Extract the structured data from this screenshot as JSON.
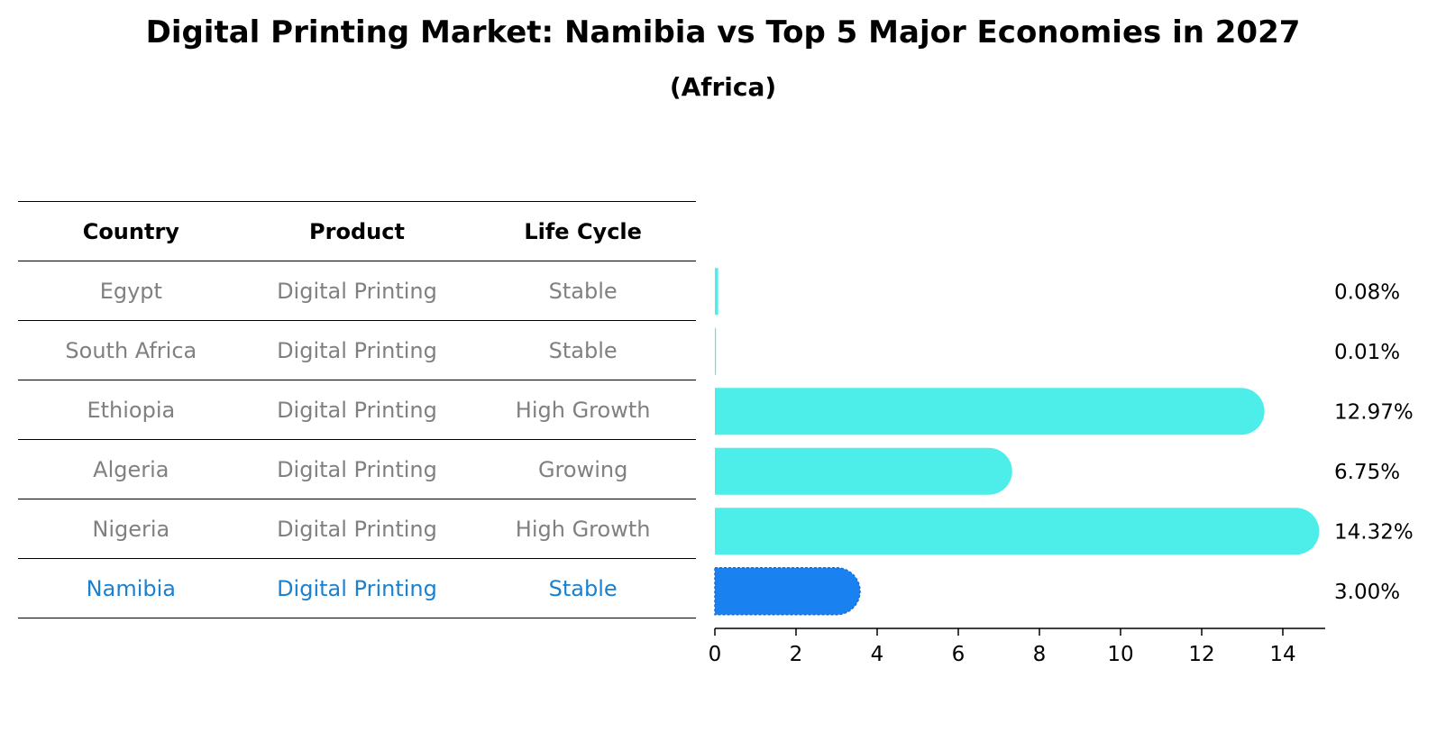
{
  "title": "Digital Printing Market: Namibia vs Top 5 Major Economies in 2027",
  "subtitle": "(Africa)",
  "table": {
    "headers": [
      "Country",
      "Product",
      "Life Cycle"
    ],
    "rows": [
      {
        "country": "Egypt",
        "product": "Digital Printing",
        "life_cycle": "Stable"
      },
      {
        "country": "South Africa",
        "product": "Digital Printing",
        "life_cycle": "Stable"
      },
      {
        "country": "Ethiopia",
        "product": "Digital Printing",
        "life_cycle": "High Growth"
      },
      {
        "country": "Algeria",
        "product": "Digital Printing",
        "life_cycle": "Growing"
      },
      {
        "country": "Nigeria",
        "product": "Digital Printing",
        "life_cycle": "High Growth"
      },
      {
        "country": "Namibia",
        "product": "Digital Printing",
        "life_cycle": "Stable"
      }
    ],
    "highlight_index": 5
  },
  "chart_data": {
    "type": "bar",
    "orientation": "horizontal",
    "categories": [
      "Egypt",
      "South Africa",
      "Ethiopia",
      "Algeria",
      "Nigeria",
      "Namibia"
    ],
    "values": [
      0.08,
      0.01,
      12.97,
      6.75,
      14.32,
      3.0
    ],
    "value_labels": [
      "0.08%",
      "0.01%",
      "12.97%",
      "6.75%",
      "14.32%",
      "3.00%"
    ],
    "xlim": [
      0,
      15
    ],
    "xticks": [
      0,
      2,
      4,
      6,
      8,
      10,
      12,
      14
    ],
    "highlight": "Namibia",
    "colors": {
      "default": "#4deeea",
      "highlight": "#1a82f0"
    }
  }
}
